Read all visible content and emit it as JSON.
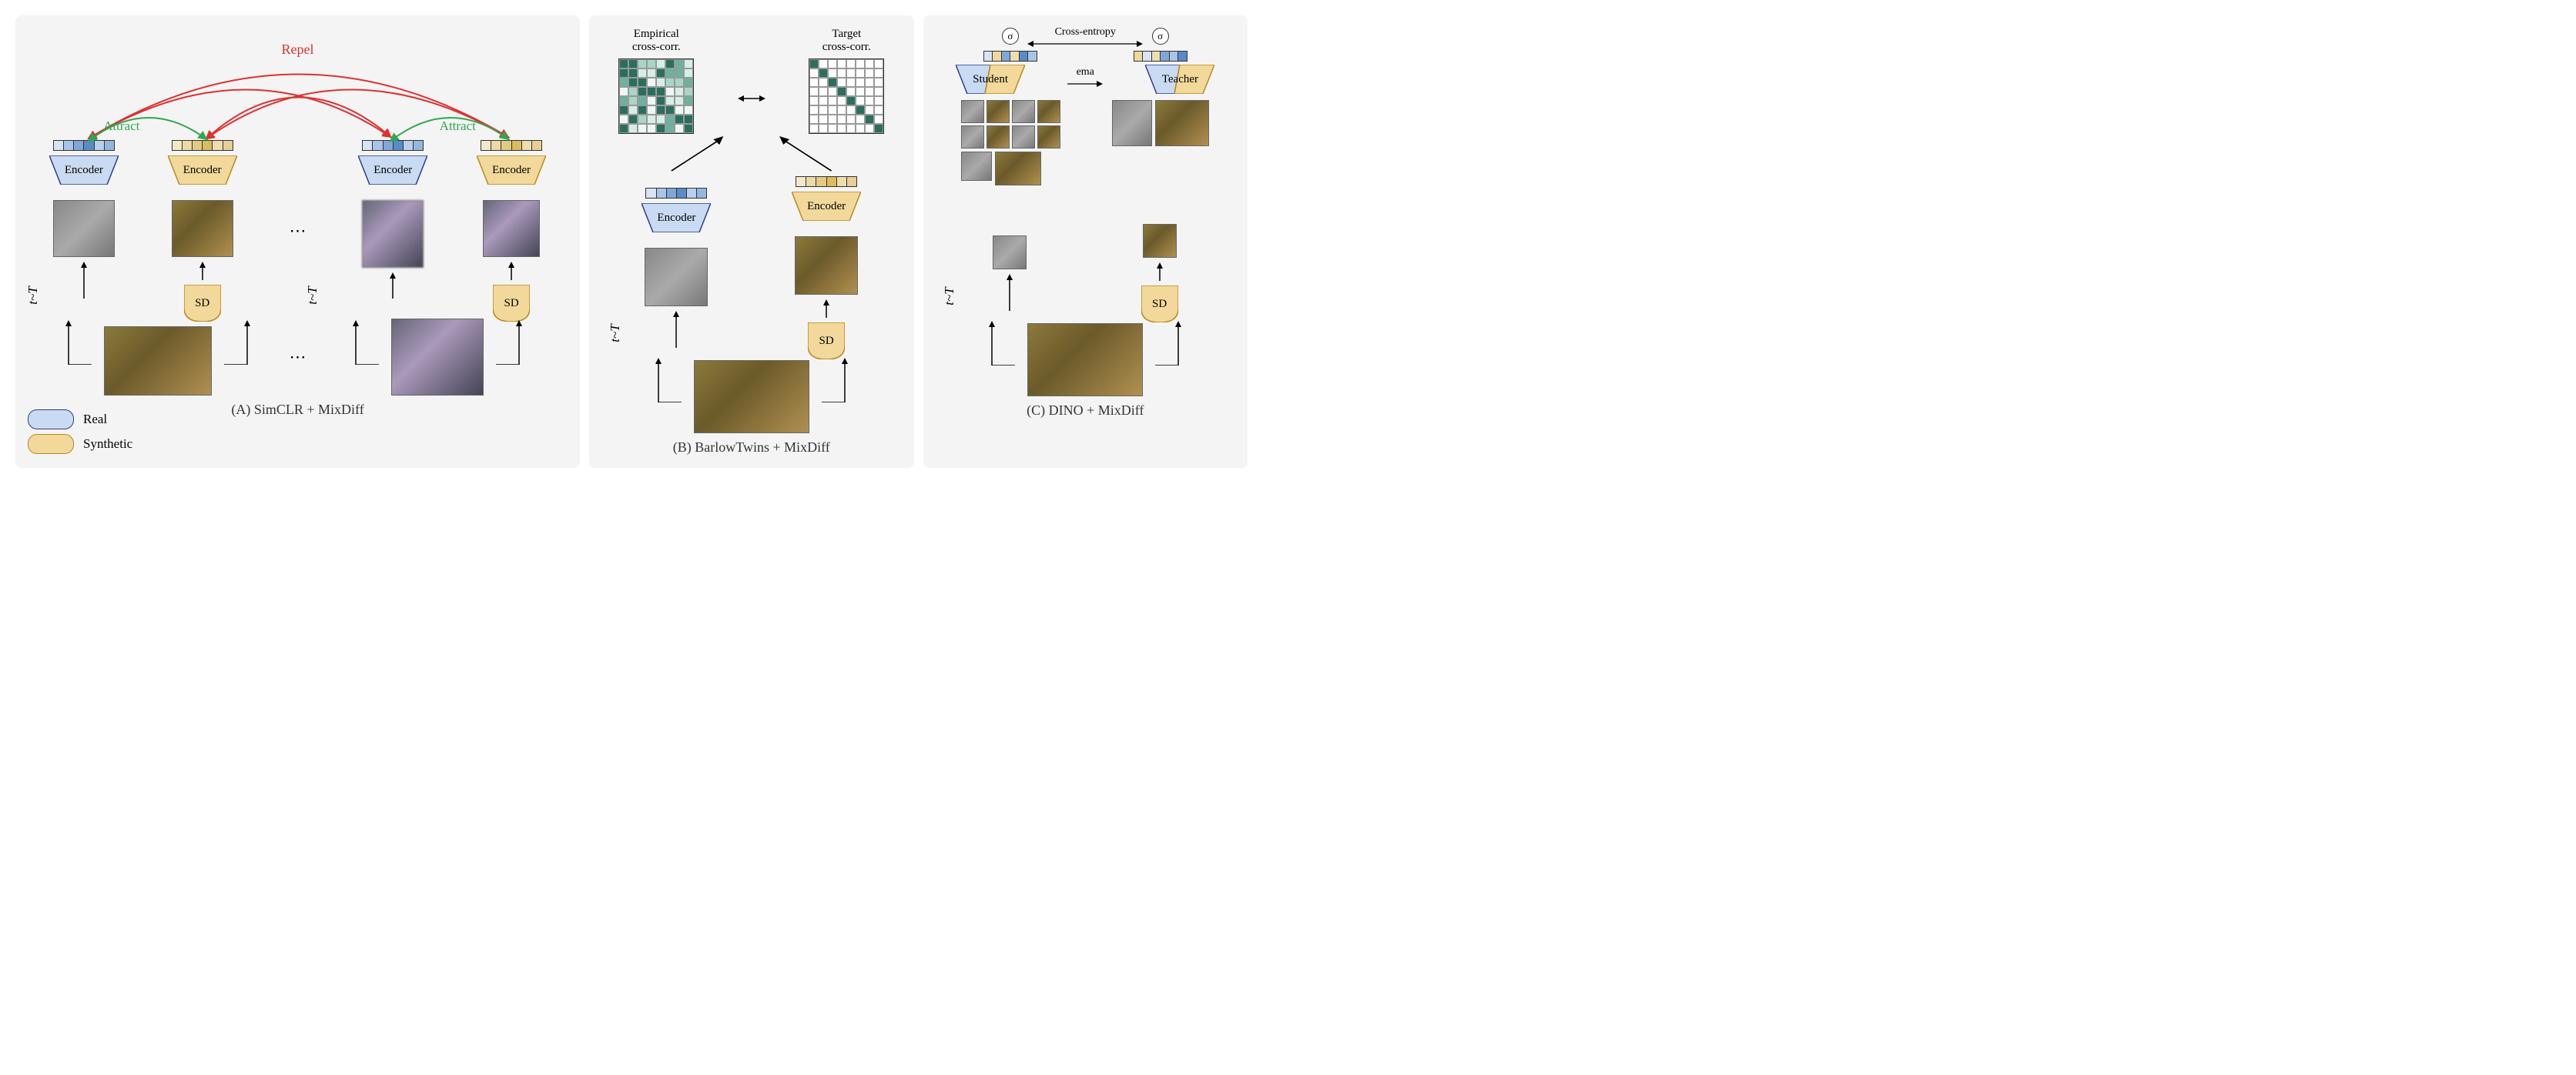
{
  "colors": {
    "real_fill": "#c9dbf2",
    "real_stroke": "#2a3d8f",
    "synth_fill": "#f2d89a",
    "synth_stroke": "#b88a1a",
    "repel": "#e03030",
    "attract": "#2fa84f",
    "panel_bg": "#f4f4f4",
    "matrix_dark": "#2a6e5e",
    "matrix_light": "#a8d5c8",
    "matrix_mid": "#6bb3a0"
  },
  "legend": {
    "real": "Real",
    "synthetic": "Synthetic"
  },
  "labels": {
    "encoder": "Encoder",
    "sd": "SD",
    "repel": "Repel",
    "attract": "Attract",
    "tT": "t~T",
    "dots": "⋯",
    "empirical": "Empirical\ncross-corr.",
    "target": "Target\ncross-corr.",
    "student": "Student",
    "teacher": "Teacher",
    "ema": "ema",
    "crossentropy": "Cross-entropy",
    "sigma": "σ"
  },
  "titles": {
    "a": "(A) SimCLR + MixDiff",
    "b": "(B) BarlowTwins + MixDiff",
    "c": "(C) DINO + MixDiff"
  },
  "embed_colors": {
    "real": [
      "#d6e4f5",
      "#a8c5e8",
      "#7fa8d8",
      "#5a8bc8",
      "#b8d0ea",
      "#94b8dd"
    ],
    "synth": [
      "#f5e8c8",
      "#ecd9a5",
      "#e3ca82",
      "#dabb5f",
      "#efddb0",
      "#e7cf95"
    ]
  },
  "fontsize": {
    "title": 18,
    "label": 15,
    "small": 14
  }
}
